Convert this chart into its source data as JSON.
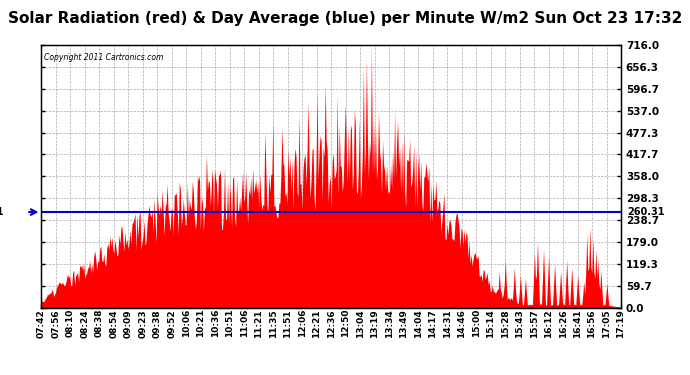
{
  "title": "Solar Radiation (red) & Day Average (blue) per Minute W/m2 Sun Oct 23 17:32",
  "copyright": "Copyright 2011 Cartronics.com",
  "average_line": 260.31,
  "average_label": "260.31",
  "ymax": 716.0,
  "ymin": 0.0,
  "yticks": [
    0.0,
    59.7,
    119.3,
    179.0,
    238.7,
    298.3,
    358.0,
    417.7,
    477.3,
    537.0,
    596.7,
    656.3,
    716.0
  ],
  "ytick_labels": [
    "0.0",
    "59.7",
    "119.3",
    "179.0",
    "238.7",
    "298.3",
    "358.0",
    "417.7",
    "477.3",
    "537.0",
    "596.7",
    "656.3",
    "716.0"
  ],
  "xtick_labels": [
    "07:42",
    "07:56",
    "08:10",
    "08:24",
    "08:38",
    "08:54",
    "09:09",
    "09:23",
    "09:38",
    "09:52",
    "10:06",
    "10:21",
    "10:36",
    "10:51",
    "11:06",
    "11:21",
    "11:35",
    "11:51",
    "12:06",
    "12:21",
    "12:36",
    "12:50",
    "13:04",
    "13:19",
    "13:34",
    "13:49",
    "14:04",
    "14:17",
    "14:31",
    "14:46",
    "15:00",
    "15:14",
    "15:28",
    "15:43",
    "15:57",
    "16:12",
    "16:26",
    "16:41",
    "16:56",
    "17:05",
    "17:19"
  ],
  "background_color": "#ffffff",
  "plot_bg_color": "#ffffff",
  "fill_color": "#ff0000",
  "line_color": "#0000cc",
  "grid_color": "#888888",
  "title_fontsize": 11,
  "figsize": [
    6.9,
    3.75
  ],
  "dpi": 100
}
